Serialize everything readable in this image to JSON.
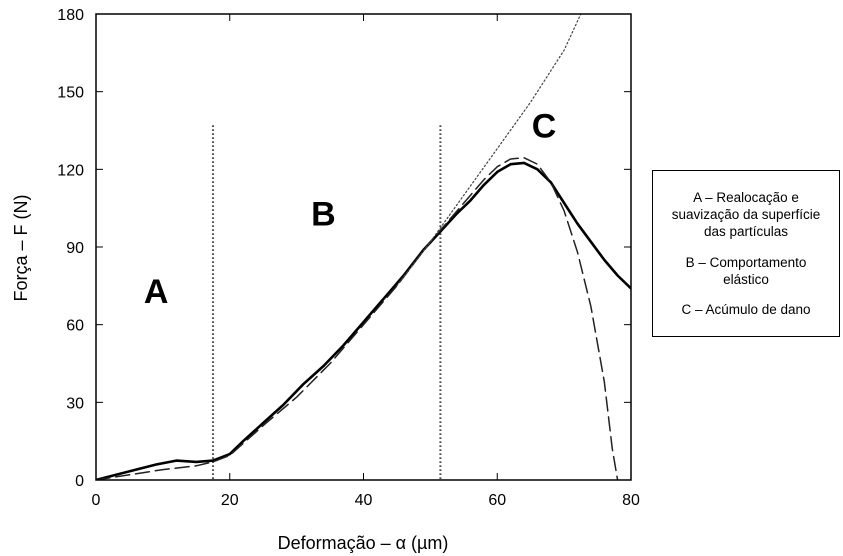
{
  "chart_data": {
    "type": "line",
    "xlabel": "Deformação – α (µm)",
    "ylabel": "Força – F (N)",
    "xlim": [
      0,
      80
    ],
    "ylim": [
      0,
      180
    ],
    "xticks": [
      0,
      20,
      40,
      60,
      80
    ],
    "yticks": [
      0,
      30,
      60,
      90,
      120,
      150,
      180
    ],
    "x_tick_labels": [
      "0",
      "20",
      "40",
      "60",
      "80"
    ],
    "y_tick_labels": [
      "0",
      "30",
      "60",
      "90",
      "120",
      "150",
      "180"
    ],
    "grid": false,
    "series": [
      {
        "style": "solid",
        "x": [
          0,
          3,
          6,
          9,
          12,
          15,
          17.5,
          20,
          22,
          25,
          28,
          31,
          34,
          37,
          40,
          43,
          46,
          49,
          51.5,
          54,
          56,
          58,
          60,
          62,
          64,
          66,
          68,
          70,
          72,
          74,
          76,
          78,
          80
        ],
        "y": [
          0,
          2,
          4,
          6,
          7.5,
          7,
          7.5,
          10,
          15,
          22,
          29,
          37,
          44,
          52,
          61,
          70,
          79,
          89,
          96,
          103,
          108,
          114,
          119,
          122,
          122.5,
          120,
          115,
          107,
          99,
          92,
          85,
          79,
          74
        ]
      },
      {
        "style": "dashed",
        "x": [
          0,
          5,
          10,
          15,
          17.5,
          20,
          25,
          30,
          35,
          40,
          45,
          50,
          52,
          55,
          58,
          60,
          62,
          64,
          66,
          68,
          70,
          72,
          74,
          76,
          77.2,
          78
        ],
        "y": [
          0,
          2,
          4,
          5.5,
          7,
          9.5,
          21,
          32,
          45,
          60,
          75,
          92,
          98,
          107,
          116,
          121,
          124,
          124.5,
          122,
          115,
          104,
          88,
          67,
          38,
          12,
          0
        ]
      },
      {
        "style": "dotted",
        "x": [
          45,
          50,
          55,
          60,
          65,
          70,
          72.5
        ],
        "y": [
          75,
          92,
          110,
          128,
          146,
          166,
          180
        ]
      }
    ],
    "vertical_lines": [
      {
        "x": 17.5,
        "y_max": 137,
        "style": "dotted"
      },
      {
        "x": 51.5,
        "y_max": 137,
        "style": "dotted"
      }
    ],
    "annotations": [
      {
        "text": "A",
        "x": 9,
        "y": 73
      },
      {
        "text": "B",
        "x": 34,
        "y": 103
      },
      {
        "text": "C",
        "x": 67,
        "y": 137
      }
    ]
  },
  "legend_box": {
    "entries": [
      "A – Realocação e\nsuavização da superfície\ndas partículas",
      "B – Comportamento\nelástico",
      "C – Acúmulo de dano"
    ]
  }
}
